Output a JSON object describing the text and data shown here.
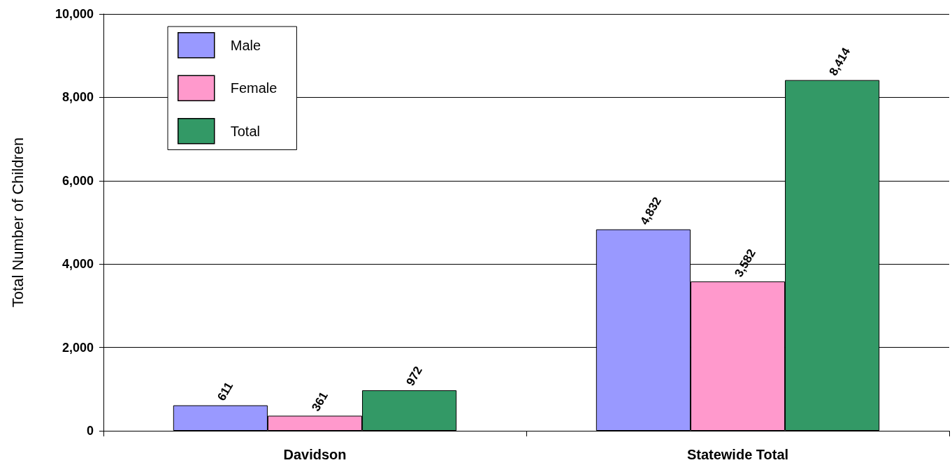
{
  "chart_data": {
    "type": "bar",
    "ylabel": "Total Number of Children",
    "categories": [
      "Davidson",
      "Statewide Total"
    ],
    "series": [
      {
        "name": "Male",
        "color": "#9999ff",
        "values": [
          611,
          4832
        ],
        "value_labels": [
          "611",
          "4,832"
        ]
      },
      {
        "name": "Female",
        "color": "#ff99cc",
        "values": [
          361,
          3582
        ],
        "value_labels": [
          "361",
          "3,582"
        ]
      },
      {
        "name": "Total",
        "color": "#339966",
        "values": [
          972,
          8414
        ],
        "value_labels": [
          "972",
          "8,414"
        ]
      }
    ],
    "ylim": [
      0,
      10000
    ],
    "yticks": [
      {
        "value": 0,
        "label": "0"
      },
      {
        "value": 2000,
        "label": "2,000"
      },
      {
        "value": 4000,
        "label": "4,000"
      },
      {
        "value": 6000,
        "label": "6,000"
      },
      {
        "value": 8000,
        "label": "8,000"
      },
      {
        "value": 10000,
        "label": "10,000"
      }
    ],
    "grid": "y",
    "legend": "top left"
  }
}
